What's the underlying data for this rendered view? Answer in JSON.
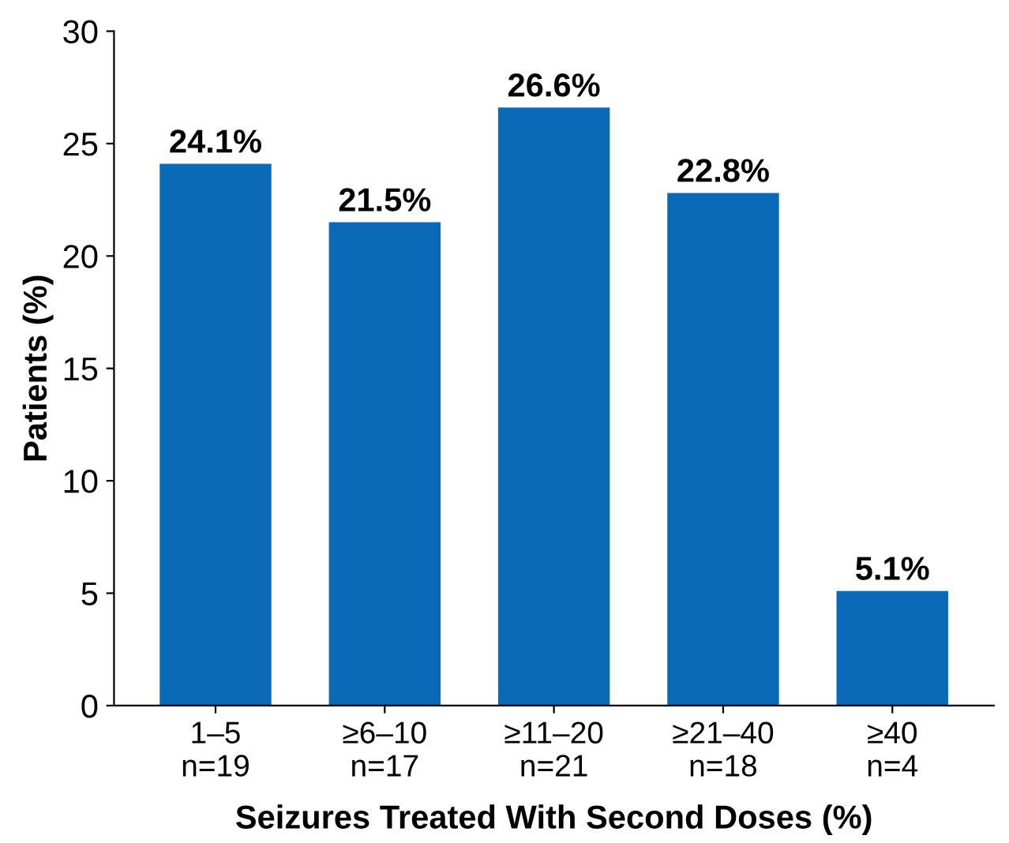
{
  "chart_data": {
    "type": "bar",
    "xlabel": "Seizures Treated With Second Doses (%)",
    "ylabel": "Patients (%)",
    "categories": [
      "1–5\nn=19",
      "≥6–10\nn=17",
      "≥11–20\nn=21",
      "≥21–40\nn=18",
      "≥40\nn=4"
    ],
    "values": [
      24.1,
      21.5,
      26.6,
      22.8,
      5.1
    ],
    "value_labels": [
      "24.1%",
      "21.5%",
      "26.6%",
      "22.8%",
      "5.1%"
    ],
    "color": "#0a6ab8",
    "ylim": [
      0,
      30
    ],
    "yticks": [
      0,
      5,
      10,
      15,
      20,
      25,
      30
    ],
    "grid": false,
    "legend": false
  }
}
